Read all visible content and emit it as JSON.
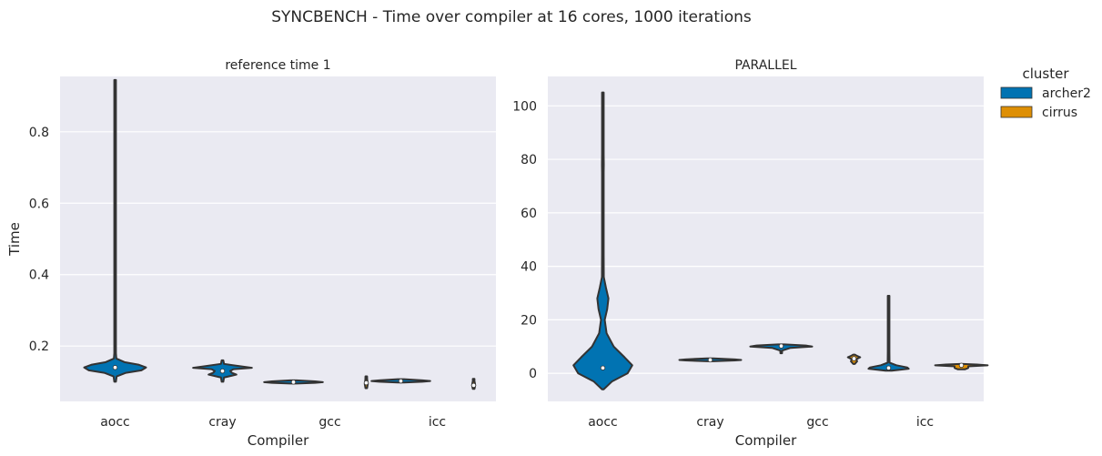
{
  "title": "SYNCBENCH - Time over compiler at 16 cores, 1000 iterations",
  "colors": {
    "archer2": "#0173b2",
    "cirrus": "#de8f05",
    "panel_bg": "#eaeaf2",
    "grid": "#ffffff",
    "outline": "#333333"
  },
  "legend": {
    "title": "cluster",
    "placement": "right",
    "entries": [
      "archer2",
      "cirrus"
    ]
  },
  "chart_data": [
    {
      "type": "violin",
      "title": "reference time 1",
      "xlabel": "Compiler",
      "ylabel": "Time",
      "categories": [
        "aocc",
        "cray",
        "gcc",
        "icc"
      ],
      "ylim": [
        0.045,
        0.955
      ],
      "yticks": [
        0.2,
        0.4,
        0.6,
        0.8
      ],
      "ytick_labels": [
        "0.2",
        "0.4",
        "0.6",
        "0.8"
      ],
      "grid": true,
      "violins": [
        {
          "category": "aocc",
          "series": "archer2",
          "min": 0.1,
          "max": 0.945,
          "median": 0.14,
          "profile": [
            [
              0.1,
              0.003
            ],
            [
              0.115,
              0.05
            ],
            [
              0.125,
              0.35
            ],
            [
              0.132,
              0.85
            ],
            [
              0.14,
              1.0
            ],
            [
              0.148,
              0.75
            ],
            [
              0.155,
              0.3
            ],
            [
              0.165,
              0.04
            ],
            [
              0.18,
              0.006
            ],
            [
              0.3,
              0.004
            ],
            [
              0.945,
              0.003
            ]
          ]
        },
        {
          "category": "cray",
          "series": "archer2",
          "min": 0.1,
          "max": 0.16,
          "median": 0.13,
          "profile": [
            [
              0.1,
              0.004
            ],
            [
              0.112,
              0.05
            ],
            [
              0.12,
              0.45
            ],
            [
              0.125,
              0.3
            ],
            [
              0.13,
              0.25
            ],
            [
              0.135,
              0.35
            ],
            [
              0.139,
              0.95
            ],
            [
              0.143,
              0.6
            ],
            [
              0.15,
              0.05
            ],
            [
              0.16,
              0.01
            ]
          ]
        },
        {
          "category": "gcc",
          "series": "archer2",
          "min": 0.095,
          "max": 0.104,
          "median": 0.099,
          "profile": [
            [
              0.095,
              0.1
            ],
            [
              0.097,
              0.7
            ],
            [
              0.099,
              0.95
            ],
            [
              0.101,
              0.7
            ],
            [
              0.104,
              0.1
            ]
          ]
        },
        {
          "category": "gcc",
          "series": "cirrus",
          "min": 0.082,
          "max": 0.115,
          "median": 0.097,
          "profile": [
            [
              0.082,
              0.01
            ],
            [
              0.089,
              0.04
            ],
            [
              0.094,
              0.05
            ],
            [
              0.1,
              0.04
            ],
            [
              0.106,
              0.03
            ],
            [
              0.115,
              0.005
            ]
          ]
        },
        {
          "category": "icc",
          "series": "archer2",
          "min": 0.098,
          "max": 0.107,
          "median": 0.102,
          "profile": [
            [
              0.098,
              0.1
            ],
            [
              0.1,
              0.7
            ],
            [
              0.102,
              0.95
            ],
            [
              0.104,
              0.7
            ],
            [
              0.107,
              0.1
            ]
          ]
        },
        {
          "category": "icc",
          "series": "cirrus",
          "min": 0.08,
          "max": 0.108,
          "median": 0.09,
          "profile": [
            [
              0.08,
              0.01
            ],
            [
              0.085,
              0.04
            ],
            [
              0.09,
              0.05
            ],
            [
              0.096,
              0.04
            ],
            [
              0.102,
              0.02
            ],
            [
              0.108,
              0.005
            ]
          ]
        }
      ]
    },
    {
      "type": "violin",
      "title": "PARALLEL",
      "xlabel": "Compiler",
      "ylabel": "",
      "categories": [
        "aocc",
        "cray",
        "gcc",
        "icc"
      ],
      "ylim": [
        -10.5,
        111
      ],
      "yticks": [
        0,
        20,
        40,
        60,
        80,
        100
      ],
      "ytick_labels": [
        "0",
        "20",
        "40",
        "60",
        "80",
        "100"
      ],
      "grid": true,
      "violins": [
        {
          "category": "aocc",
          "series": "archer2",
          "min": -6,
          "max": 105,
          "median": 2,
          "profile": [
            [
              -6,
              0.003
            ],
            [
              -3,
              0.3
            ],
            [
              0,
              0.8
            ],
            [
              3,
              0.95
            ],
            [
              6,
              0.7
            ],
            [
              10,
              0.35
            ],
            [
              15,
              0.12
            ],
            [
              20,
              0.06
            ],
            [
              24,
              0.14
            ],
            [
              28,
              0.18
            ],
            [
              32,
              0.1
            ],
            [
              36,
              0.03
            ],
            [
              45,
              0.02
            ],
            [
              60,
              0.01
            ],
            [
              75,
              0.01
            ],
            [
              78,
              0.03
            ],
            [
              82,
              0.01
            ],
            [
              95,
              0.005
            ],
            [
              105,
              0.003
            ]
          ]
        },
        {
          "category": "cray",
          "series": "archer2",
          "min": 4.5,
          "max": 5.6,
          "median": 5,
          "profile": [
            [
              4.5,
              0.1
            ],
            [
              4.8,
              0.8
            ],
            [
              5,
              1.0
            ],
            [
              5.2,
              0.8
            ],
            [
              5.6,
              0.1
            ]
          ]
        },
        {
          "category": "gcc",
          "series": "archer2",
          "min": 7.5,
          "max": 10.8,
          "median": 10.2,
          "profile": [
            [
              7.5,
              0.01
            ],
            [
              8.5,
              0.03
            ],
            [
              9.5,
              0.3
            ],
            [
              10,
              1.0
            ],
            [
              10.4,
              0.8
            ],
            [
              10.8,
              0.1
            ]
          ]
        },
        {
          "category": "gcc",
          "series": "cirrus",
          "min": 3.5,
          "max": 7,
          "median": 5.5,
          "profile": [
            [
              3.5,
              0.02
            ],
            [
              4.5,
              0.1
            ],
            [
              5.3,
              0.08
            ],
            [
              6,
              0.2
            ],
            [
              6.5,
              0.1
            ],
            [
              7,
              0.02
            ]
          ]
        },
        {
          "category": "icc",
          "series": "archer2",
          "min": 1,
          "max": 29,
          "median": 2,
          "profile": [
            [
              1,
              0.1
            ],
            [
              1.7,
              0.65
            ],
            [
              2.2,
              0.6
            ],
            [
              3,
              0.25
            ],
            [
              4,
              0.03
            ],
            [
              8,
              0.01
            ],
            [
              15,
              0.006
            ],
            [
              29,
              0.003
            ]
          ]
        },
        {
          "category": "icc",
          "series": "cirrus",
          "min": 1.5,
          "max": 3.5,
          "median": 3,
          "profile": [
            [
              1.5,
              0.12
            ],
            [
              2,
              0.22
            ],
            [
              2.6,
              0.22
            ],
            [
              3,
              0.85
            ],
            [
              3.3,
              0.5
            ],
            [
              3.5,
              0.05
            ]
          ]
        }
      ]
    }
  ]
}
